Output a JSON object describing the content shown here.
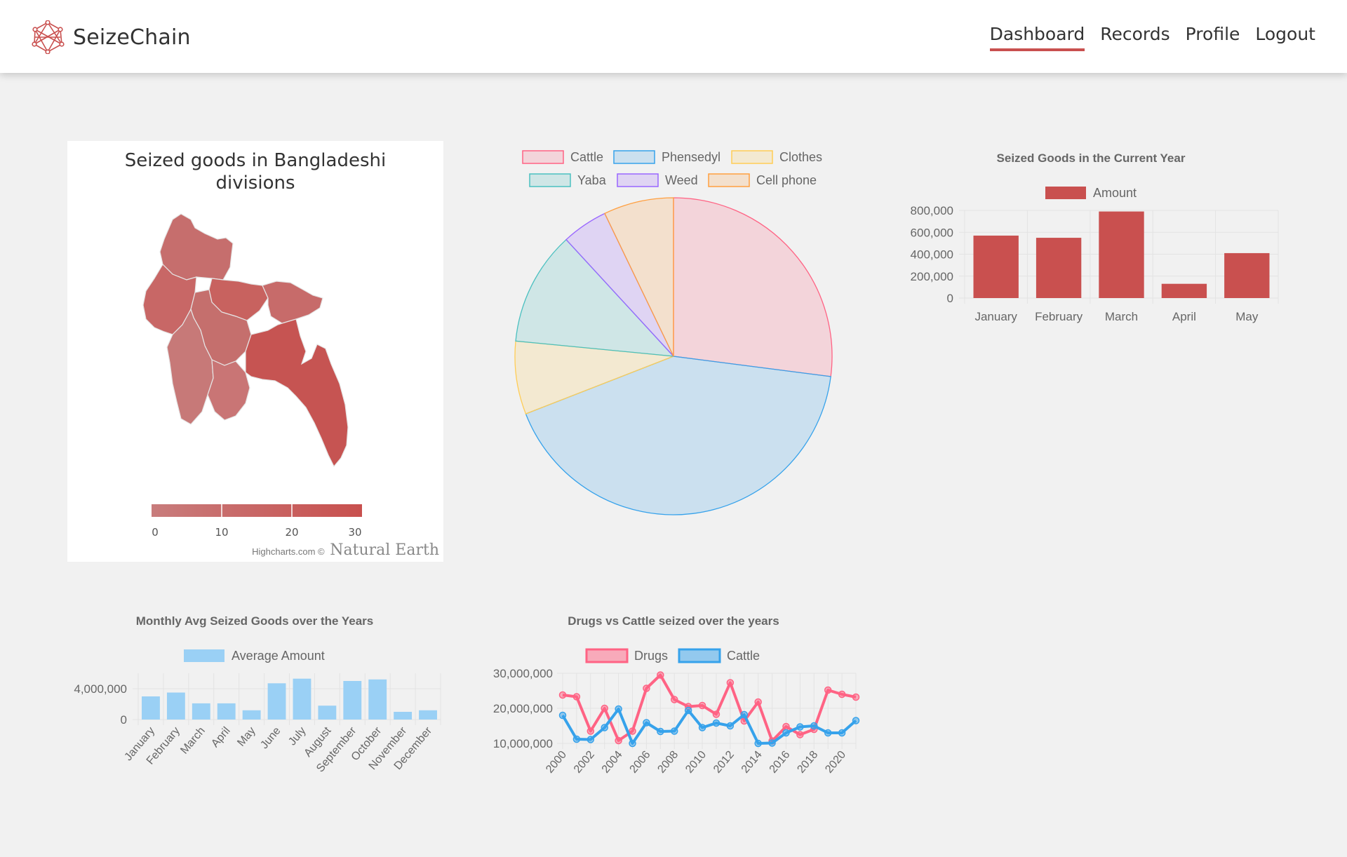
{
  "app": {
    "name": "SeizeChain"
  },
  "nav": {
    "items": [
      "Dashboard",
      "Records",
      "Profile",
      "Logout"
    ],
    "active": "Dashboard"
  },
  "colors": {
    "accent": "#c9504f",
    "cattle": "#ff6384",
    "phensedyl": "#36a2eb",
    "clothes": "#ffcd56",
    "yaba": "#4bc0c0",
    "weed": "#9966ff",
    "cellphone": "#ff9f40",
    "bar_blue": "#9ad0f5"
  },
  "map": {
    "title": "Seized goods in Bangladeshi divisions",
    "legend_ticks": [
      "0",
      "10",
      "20",
      "30"
    ],
    "credit_prefix": "Highcharts.com ©",
    "credit_source": "Natural Earth"
  },
  "chart_data": [
    {
      "id": "pie",
      "type": "pie",
      "title": "",
      "labels": [
        "Cattle",
        "Phensedyl",
        "Clothes",
        "Yaba",
        "Weed",
        "Cell phone"
      ],
      "values": [
        26.5,
        41.2,
        7.3,
        11.4,
        4.6,
        7.0
      ]
    },
    {
      "id": "current_year",
      "type": "bar",
      "title": "Seized Goods in the Current Year",
      "categories": [
        "January",
        "February",
        "March",
        "April",
        "May"
      ],
      "series": [
        {
          "name": "Amount",
          "values": [
            570000,
            550000,
            790000,
            130000,
            410000
          ]
        }
      ],
      "yticks": [
        "0",
        "200,000",
        "400,000",
        "600,000",
        "800,000"
      ],
      "ylim": [
        0,
        800000
      ]
    },
    {
      "id": "monthly_avg",
      "type": "bar",
      "title": "Monthly Avg Seized Goods over the Years",
      "categories": [
        "January",
        "February",
        "March",
        "April",
        "May",
        "June",
        "July",
        "August",
        "September",
        "October",
        "November",
        "December"
      ],
      "series": [
        {
          "name": "Average Amount",
          "values": [
            3000000,
            3500000,
            2100000,
            2100000,
            1200000,
            4700000,
            5300000,
            1800000,
            5000000,
            5200000,
            1000000,
            1200000
          ]
        }
      ],
      "yticks": [
        "0",
        "4,000,000"
      ],
      "ylim": [
        0,
        6000000
      ]
    },
    {
      "id": "drugs_vs_cattle",
      "type": "line",
      "title": "Drugs vs Cattle seized over the years",
      "x": [
        2000,
        2001,
        2002,
        2003,
        2004,
        2005,
        2006,
        2007,
        2008,
        2009,
        2010,
        2011,
        2012,
        2013,
        2014,
        2015,
        2016,
        2017,
        2018,
        2019,
        2020,
        2021
      ],
      "xticks": [
        "2000",
        "2002",
        "2004",
        "2006",
        "2008",
        "2010",
        "2012",
        "2014",
        "2016",
        "2018",
        "2020"
      ],
      "series": [
        {
          "name": "Drugs",
          "values": [
            23800000,
            23300000,
            13500000,
            20000000,
            10800000,
            13500000,
            25700000,
            29500000,
            22500000,
            20500000,
            20800000,
            18300000,
            27300000,
            16400000,
            21800000,
            10700000,
            14800000,
            12500000,
            14000000,
            25200000,
            24000000,
            23200000
          ]
        },
        {
          "name": "Cattle",
          "values": [
            18000000,
            11200000,
            11100000,
            14500000,
            19800000,
            10000000,
            15900000,
            13400000,
            13500000,
            19400000,
            14500000,
            15800000,
            15000000,
            18200000,
            10000000,
            10100000,
            13000000,
            14700000,
            15000000,
            13000000,
            13000000,
            16500000
          ]
        }
      ],
      "yticks": [
        "10,000,000",
        "20,000,000",
        "30,000,000"
      ],
      "ylim": [
        10000000,
        30000000
      ]
    }
  ]
}
